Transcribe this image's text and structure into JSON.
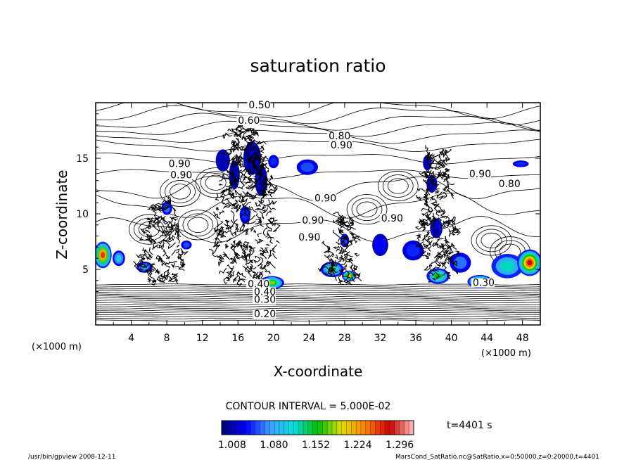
{
  "chart_data": {
    "type": "contour",
    "title": "saturation ratio",
    "xlabel": "X-coordinate",
    "ylabel": "Z-coordinate",
    "x_unit_label": "(×1000 m)",
    "z_unit_label": "(×1000 m)",
    "xlim": [
      0,
      50
    ],
    "ylim": [
      0,
      20
    ],
    "xticks": [
      4,
      8,
      12,
      16,
      20,
      24,
      28,
      32,
      36,
      40,
      44,
      48
    ],
    "yticks": [
      5,
      10,
      15
    ],
    "contour_interval_text": "CONTOUR INTERVAL = 5.000E-02",
    "time_label": "t=4401 s",
    "colorbar": {
      "tick_labels": [
        "1.008",
        "1.080",
        "1.152",
        "1.224",
        "1.296"
      ],
      "min": 0.99,
      "max": 1.32,
      "colors": [
        "#000070",
        "#0000ff",
        "#3aa0ff",
        "#00e0e0",
        "#00c000",
        "#e0e000",
        "#ff8000",
        "#d00000",
        "#ffc0c0"
      ]
    },
    "contour_labels": [
      {
        "text": "0.50",
        "x": 17.2,
        "z": 19.5
      },
      {
        "text": "0.60",
        "x": 16.0,
        "z": 18.1
      },
      {
        "text": "0.80",
        "x": 26.2,
        "z": 16.7
      },
      {
        "text": "0.90",
        "x": 26.4,
        "z": 15.9
      },
      {
        "text": "0.90",
        "x": 8.2,
        "z": 14.2
      },
      {
        "text": "0.90",
        "x": 8.4,
        "z": 13.2
      },
      {
        "text": "0.90",
        "x": 24.6,
        "z": 11.1
      },
      {
        "text": "0.90",
        "x": 23.2,
        "z": 9.1
      },
      {
        "text": "0.90",
        "x": 22.8,
        "z": 7.6
      },
      {
        "text": "0.90",
        "x": 32.1,
        "z": 9.3
      },
      {
        "text": "0.90",
        "x": 42.0,
        "z": 13.3
      },
      {
        "text": "0.80",
        "x": 45.3,
        "z": 12.4
      },
      {
        "text": "0.30",
        "x": 42.4,
        "z": 3.5
      },
      {
        "text": "0.40",
        "x": 17.1,
        "z": 3.4
      },
      {
        "text": "0.40",
        "x": 17.8,
        "z": 2.7
      },
      {
        "text": "0.30",
        "x": 17.8,
        "z": 2.0
      },
      {
        "text": "0.20",
        "x": 17.8,
        "z": 0.7
      }
    ],
    "supersaturation_regions": [
      {
        "x": 0.8,
        "z": 6.3,
        "rx": 1.0,
        "rz": 1.2,
        "v": 1.26
      },
      {
        "x": 2.6,
        "z": 6.0,
        "rx": 0.7,
        "rz": 0.7,
        "v": 1.1
      },
      {
        "x": 5.5,
        "z": 5.2,
        "rx": 0.9,
        "rz": 0.5,
        "v": 1.08
      },
      {
        "x": 8.0,
        "z": 10.5,
        "rx": 0.6,
        "rz": 0.6,
        "v": 1.06
      },
      {
        "x": 10.2,
        "z": 7.2,
        "rx": 0.6,
        "rz": 0.4,
        "v": 1.05
      },
      {
        "x": 14.3,
        "z": 14.8,
        "rx": 0.8,
        "rz": 1.0,
        "v": 1.01
      },
      {
        "x": 15.6,
        "z": 13.5,
        "rx": 0.6,
        "rz": 1.3,
        "v": 1.01
      },
      {
        "x": 17.6,
        "z": 15.0,
        "rx": 1.0,
        "rz": 1.5,
        "v": 1.01
      },
      {
        "x": 18.6,
        "z": 13.0,
        "rx": 0.7,
        "rz": 1.4,
        "v": 1.01
      },
      {
        "x": 20.0,
        "z": 14.7,
        "rx": 0.6,
        "rz": 0.6,
        "v": 1.04
      },
      {
        "x": 23.8,
        "z": 14.2,
        "rx": 1.2,
        "rz": 0.7,
        "v": 1.05
      },
      {
        "x": 16.8,
        "z": 9.9,
        "rx": 0.6,
        "rz": 0.8,
        "v": 1.04
      },
      {
        "x": 19.8,
        "z": 3.8,
        "rx": 1.4,
        "rz": 0.6,
        "v": 1.18
      },
      {
        "x": 26.6,
        "z": 5.0,
        "rx": 1.3,
        "rz": 0.7,
        "v": 1.14
      },
      {
        "x": 28.5,
        "z": 4.4,
        "rx": 0.8,
        "rz": 0.5,
        "v": 1.2
      },
      {
        "x": 28.0,
        "z": 7.6,
        "rx": 0.5,
        "rz": 0.6,
        "v": 1.05
      },
      {
        "x": 32.0,
        "z": 7.2,
        "rx": 0.9,
        "rz": 1.0,
        "v": 1.03
      },
      {
        "x": 35.7,
        "z": 6.7,
        "rx": 1.2,
        "rz": 0.9,
        "v": 1.04
      },
      {
        "x": 37.3,
        "z": 14.6,
        "rx": 0.5,
        "rz": 0.7,
        "v": 1.01
      },
      {
        "x": 37.8,
        "z": 12.7,
        "rx": 0.6,
        "rz": 0.8,
        "v": 1.01
      },
      {
        "x": 38.5,
        "z": 4.4,
        "rx": 1.3,
        "rz": 0.7,
        "v": 1.15
      },
      {
        "x": 41.0,
        "z": 5.6,
        "rx": 1.2,
        "rz": 0.9,
        "v": 1.06
      },
      {
        "x": 43.2,
        "z": 3.9,
        "rx": 1.4,
        "rz": 0.6,
        "v": 1.2
      },
      {
        "x": 46.3,
        "z": 5.3,
        "rx": 1.8,
        "rz": 1.1,
        "v": 1.12
      },
      {
        "x": 48.8,
        "z": 5.6,
        "rx": 1.4,
        "rz": 1.2,
        "v": 1.28
      },
      {
        "x": 47.8,
        "z": 14.5,
        "rx": 0.9,
        "rz": 0.3,
        "v": 1.04
      },
      {
        "x": 38.3,
        "z": 8.7,
        "rx": 0.7,
        "rz": 0.9,
        "v": 1.02
      }
    ],
    "cloud_columns": [
      {
        "x": 7.5,
        "z0": 3.8,
        "z1": 11.0,
        "hw": 2.6
      },
      {
        "x": 17.0,
        "z0": 3.8,
        "z1": 17.8,
        "hw": 3.5
      },
      {
        "x": 27.8,
        "z0": 3.8,
        "z1": 10.0,
        "hw": 2.0
      },
      {
        "x": 38.4,
        "z0": 3.8,
        "z1": 15.6,
        "hw": 2.2
      }
    ]
  },
  "footer": {
    "left": "/usr/bin/gpview  2008-12-11",
    "right": "MarsCond_SatRatio.nc@SatRatio,x=0:50000,z=0:20000,t=4401"
  }
}
